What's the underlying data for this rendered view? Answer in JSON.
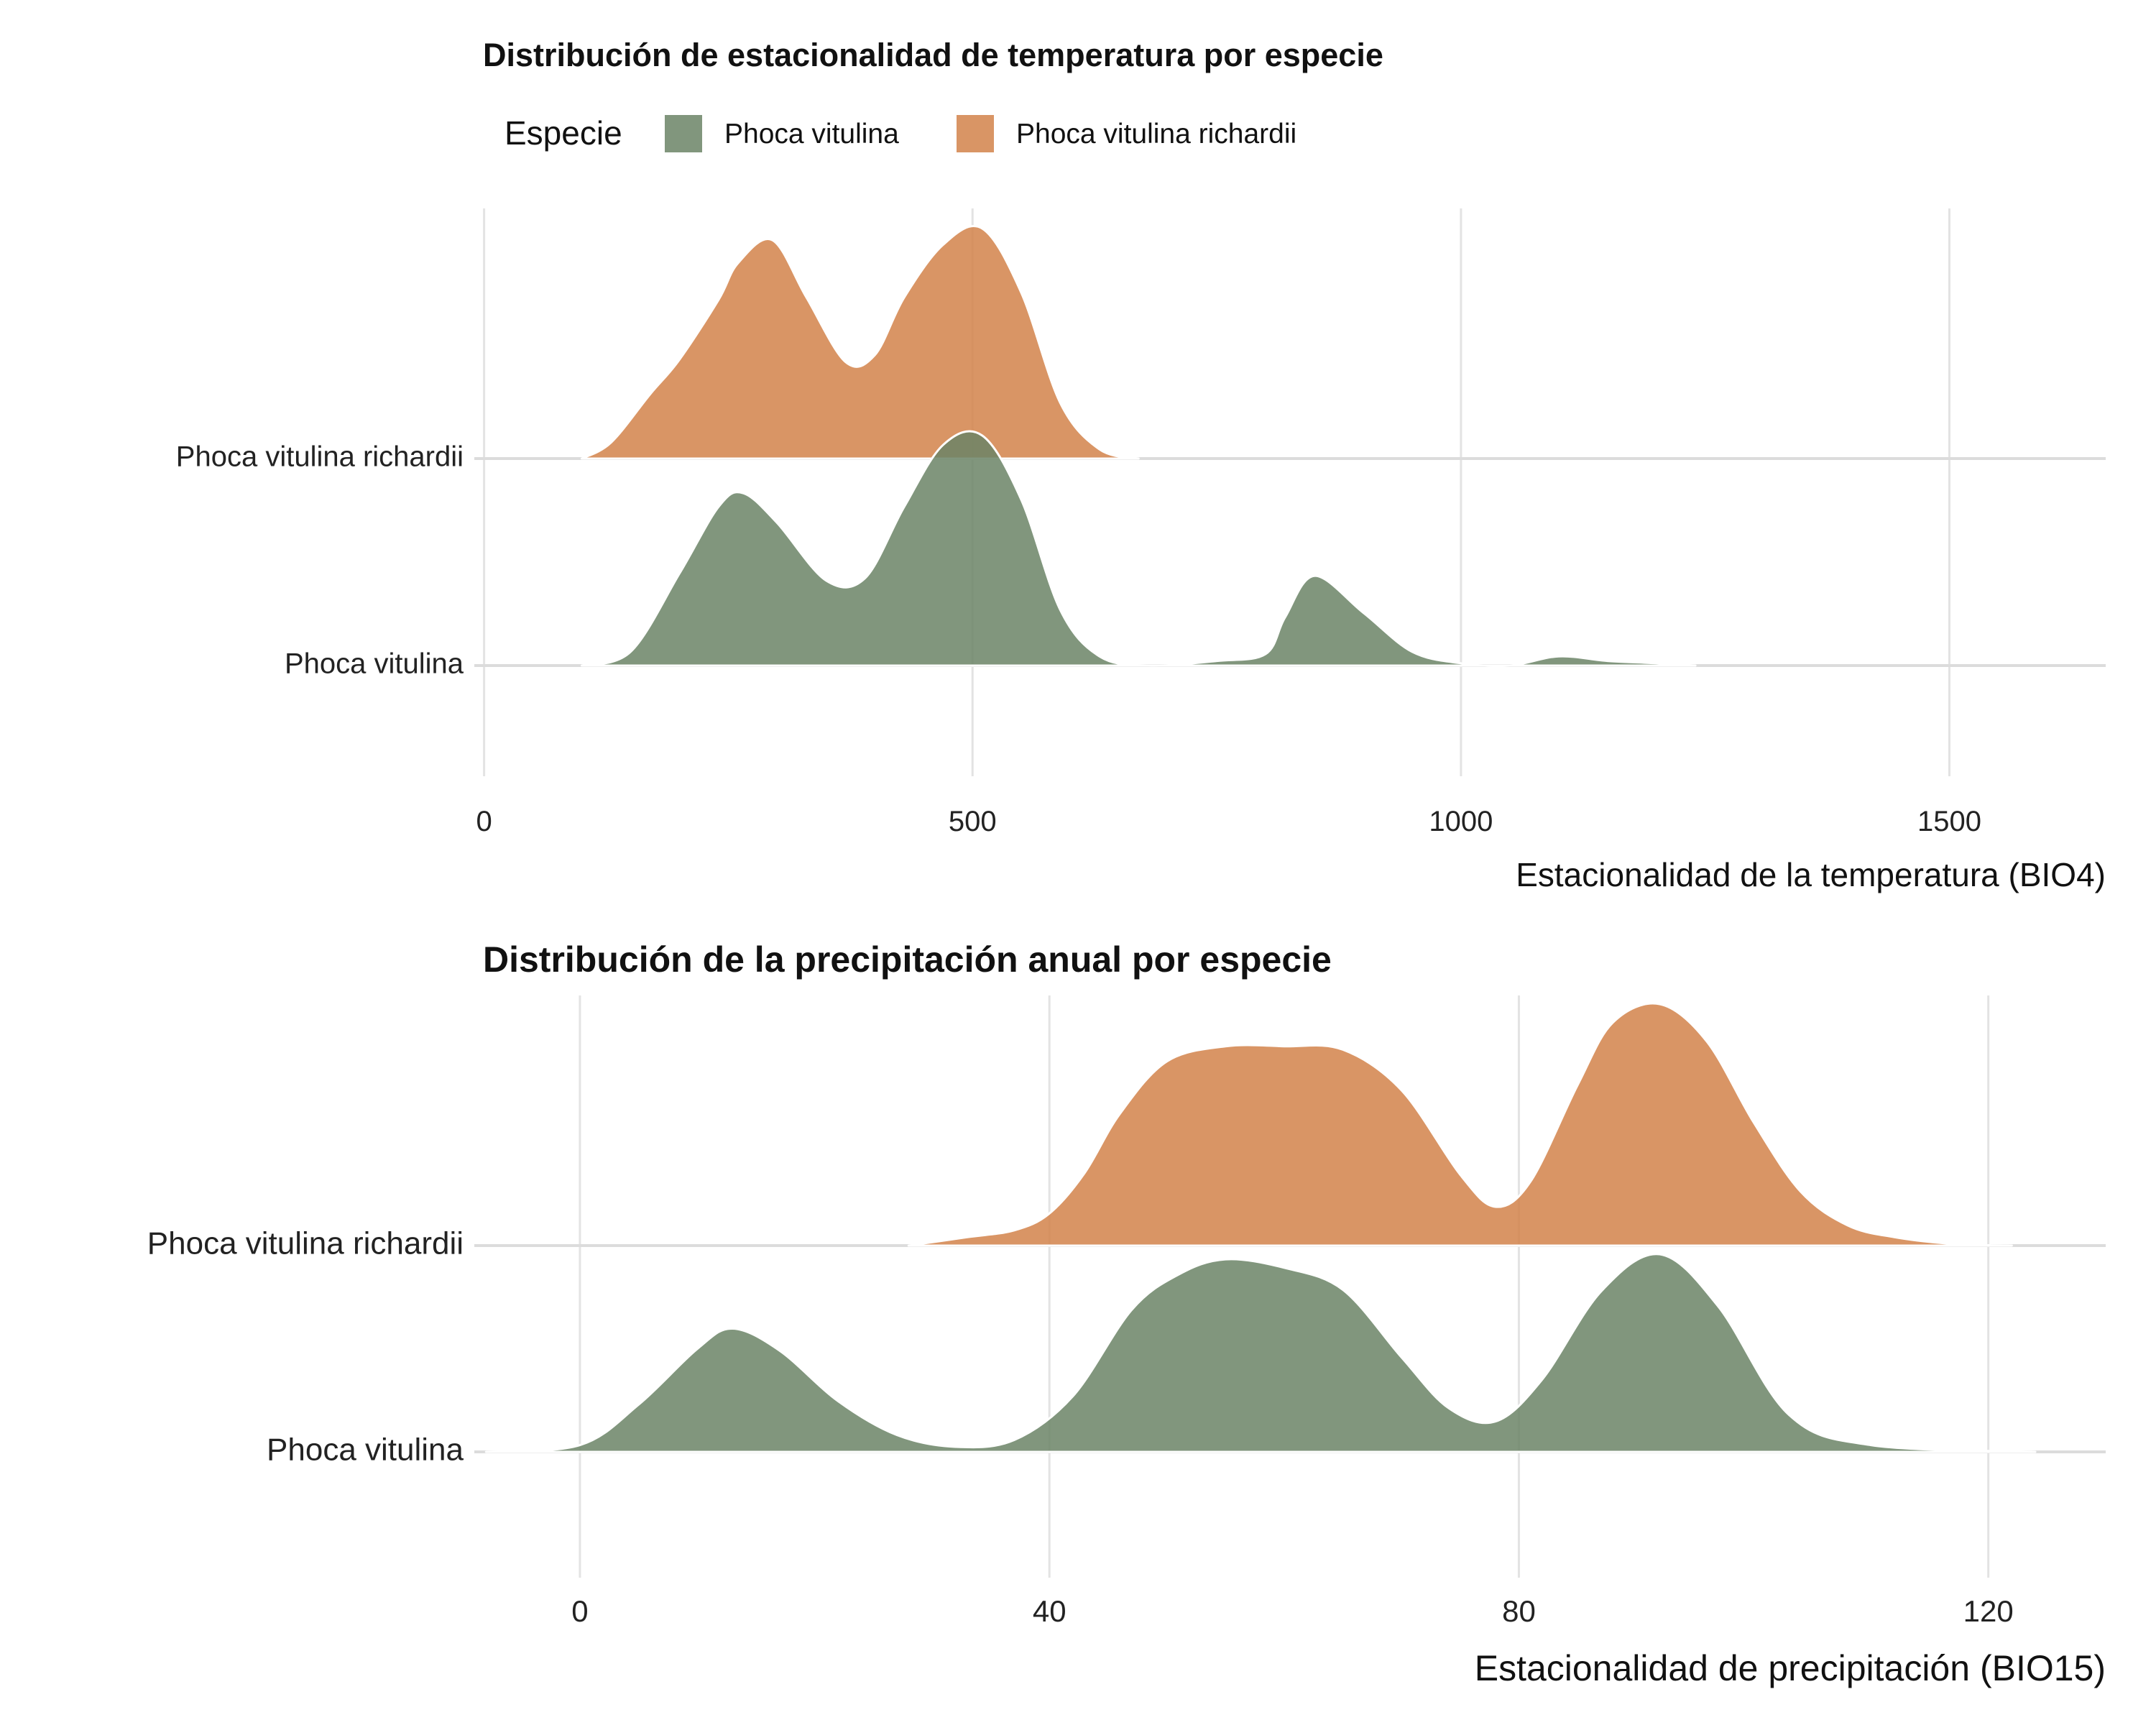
{
  "chart_data": [
    {
      "type": "ridgeline",
      "title": "Distribución de estacionalidad de temperatura por especie",
      "xlabel": "Estacionalidad de la temperatura (BIO4)",
      "ylabel": "",
      "xlim": [
        -10,
        1660
      ],
      "x_ticks": [
        0,
        500,
        1000,
        1500
      ],
      "x_tick_labels": [
        "0",
        "500",
        "1000",
        "1500"
      ],
      "categories": [
        "Phoca vitulina",
        "Phoca vitulina richardii"
      ],
      "grid": true,
      "legend": {
        "position": "top",
        "title": "Especie",
        "entries": [
          "Phoca vitulina",
          "Phoca vitulina richardii"
        ]
      },
      "series": [
        {
          "name": "Phoca vitulina",
          "color": "#6b8466",
          "x": [
            100,
            150,
            200,
            240,
            265,
            300,
            350,
            390,
            430,
            470,
            510,
            550,
            590,
            630,
            680,
            750,
            800,
            820,
            850,
            900,
            950,
            1000,
            1050,
            1100,
            1150,
            1200,
            1240
          ],
          "density": [
            0.0,
            0.06,
            0.4,
            0.69,
            0.75,
            0.62,
            0.37,
            0.38,
            0.69,
            0.96,
            1.0,
            0.72,
            0.24,
            0.04,
            0.0,
            0.02,
            0.05,
            0.21,
            0.39,
            0.23,
            0.06,
            0.01,
            0.0,
            0.04,
            0.02,
            0.01,
            0.0
          ]
        },
        {
          "name": "Phoca vitulina richardii",
          "color": "#d2824a",
          "x": [
            100,
            130,
            170,
            200,
            240,
            260,
            295,
            330,
            370,
            400,
            430,
            470,
            510,
            550,
            590,
            630,
            670
          ],
          "density": [
            0.0,
            0.07,
            0.28,
            0.43,
            0.69,
            0.85,
            0.95,
            0.7,
            0.42,
            0.45,
            0.7,
            0.93,
            1.0,
            0.72,
            0.24,
            0.04,
            0.0
          ]
        }
      ]
    },
    {
      "type": "ridgeline",
      "title": "Distribución de la precipitación anual por especie",
      "xlabel": "Estacionalidad de precipitación (BIO15)",
      "ylabel": "",
      "xlim": [
        -9,
        130
      ],
      "x_ticks": [
        0,
        40,
        80,
        120
      ],
      "x_tick_labels": [
        "0",
        "40",
        "80",
        "120"
      ],
      "categories": [
        "Phoca vitulina",
        "Phoca vitulina richardii"
      ],
      "grid": true,
      "series": [
        {
          "name": "Phoca vitulina",
          "color": "#6b8466",
          "x": [
            -8,
            0,
            5,
            10,
            13,
            17,
            22,
            27,
            32,
            37,
            42,
            47,
            51,
            55,
            60,
            65,
            70,
            74,
            78,
            82,
            87,
            92,
            97,
            103,
            110,
            124
          ],
          "density": [
            0.0,
            0.04,
            0.28,
            0.61,
            0.73,
            0.6,
            0.3,
            0.1,
            0.03,
            0.07,
            0.33,
            0.84,
            1.05,
            1.14,
            1.09,
            0.96,
            0.56,
            0.26,
            0.18,
            0.43,
            0.95,
            1.17,
            0.86,
            0.22,
            0.04,
            0.0
          ]
        },
        {
          "name": "Phoca vitulina richardii",
          "color": "#d2824a",
          "x": [
            28,
            33,
            37,
            40,
            43,
            46,
            50,
            55,
            60,
            65,
            70,
            75,
            78,
            81,
            85,
            88,
            92,
            96,
            100,
            104,
            108,
            112,
            117,
            122
          ],
          "density": [
            0.0,
            0.05,
            0.09,
            0.19,
            0.43,
            0.78,
            1.09,
            1.18,
            1.18,
            1.16,
            0.92,
            0.42,
            0.23,
            0.38,
            0.95,
            1.32,
            1.43,
            1.21,
            0.73,
            0.32,
            0.12,
            0.05,
            0.01,
            0.0
          ]
        }
      ]
    }
  ]
}
